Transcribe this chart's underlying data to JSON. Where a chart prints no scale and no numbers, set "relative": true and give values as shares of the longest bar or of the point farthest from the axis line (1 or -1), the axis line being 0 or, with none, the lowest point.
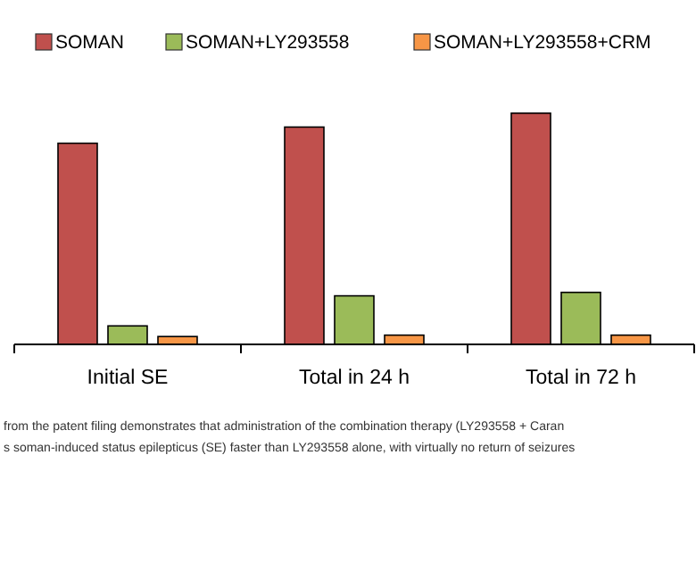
{
  "chart_data": {
    "type": "bar",
    "relative": true,
    "categories": [
      "Initial SE",
      "Total in 24 h",
      "Total in 72 h"
    ],
    "legend": "top",
    "series": [
      {
        "name": "SOMAN",
        "color": "#c0504d",
        "values": [
          0.87,
          0.94,
          1
        ]
      },
      {
        "name": "SOMAN+LY293558",
        "color": "#9bbb59",
        "values": [
          0.08,
          0.21,
          0.225
        ]
      },
      {
        "name": "SOMAN+LY293558+CRM",
        "color": "#f79646",
        "values": [
          0.034,
          0.04,
          0.04
        ]
      }
    ],
    "annotations": [
      "from the patent filing demonstrates that administration of the combination therapy (LY293558 + Caran",
      "s soman-induced status epilepticus (SE) faster than LY293558 alone, with virtually no return of seizures"
    ]
  }
}
